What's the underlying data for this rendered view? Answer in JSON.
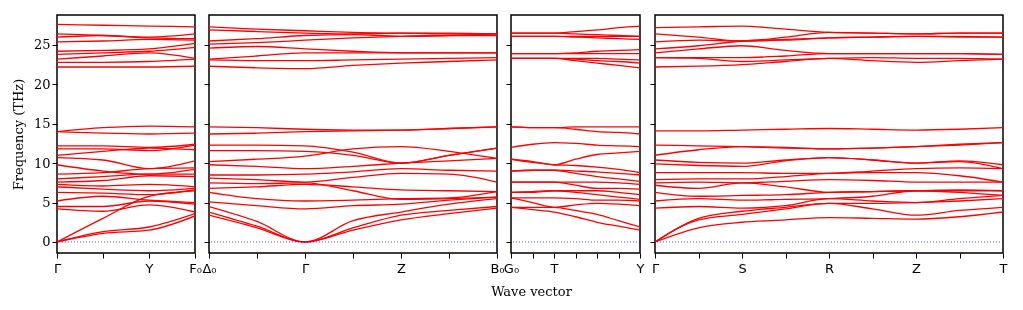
{
  "chart_data": [
    {
      "type": "line",
      "ylabel": "Frequency (THz)",
      "color": "#ff0000",
      "grid": false,
      "ylim": [
        -1.4,
        28.8
      ],
      "yticks": [
        0,
        5,
        10,
        15,
        20,
        25
      ],
      "categories": [
        "Γ",
        null,
        "Y",
        "F₀"
      ],
      "ref_lines": [
        {
          "axis": "y",
          "value": 0,
          "label": null,
          "color": "#0000ff",
          "line_style": "dotted"
        }
      ],
      "series": [
        {
          "values": [
            0,
            1.1,
            1.5,
            3.3
          ]
        },
        {
          "values": [
            0,
            1.3,
            1.9,
            3.6
          ]
        },
        {
          "values": [
            0,
            3.0,
            5.8,
            6.5
          ]
        },
        {
          "values": [
            4.2,
            3.9,
            4.7,
            3.8
          ]
        },
        {
          "values": [
            4.5,
            4.5,
            5.2,
            4.8
          ]
        },
        {
          "values": [
            5.2,
            5.8,
            5.3,
            5.0
          ]
        },
        {
          "values": [
            6.3,
            6.2,
            6.0,
            6.6
          ]
        },
        {
          "values": [
            7.0,
            6.7,
            6.5,
            6.8
          ]
        },
        {
          "values": [
            7.3,
            7.1,
            7.3,
            7.0
          ]
        },
        {
          "values": [
            7.6,
            7.8,
            8.4,
            8.3
          ]
        },
        {
          "values": [
            8.0,
            8.3,
            8.6,
            8.6
          ]
        },
        {
          "values": [
            8.6,
            8.8,
            9.3,
            9.4
          ]
        },
        {
          "values": [
            9.8,
            9.0,
            8.6,
            9.2
          ]
        },
        {
          "values": [
            10.7,
            10.4,
            9.3,
            10.3
          ]
        },
        {
          "values": [
            11.0,
            11.5,
            11.9,
            11.7
          ]
        },
        {
          "values": [
            11.8,
            11.8,
            11.6,
            12.3
          ]
        },
        {
          "values": [
            12.2,
            12.2,
            12.0,
            12.4
          ]
        },
        {
          "values": [
            14.0,
            13.8,
            13.7,
            13.8
          ]
        },
        {
          "values": [
            14.0,
            14.5,
            14.7,
            14.6
          ]
        },
        {
          "values": [
            22.2,
            22.2,
            22.2,
            22.3
          ]
        },
        {
          "values": [
            22.8,
            22.8,
            22.9,
            23.2
          ]
        },
        {
          "values": [
            23.2,
            23.6,
            24.0,
            23.3
          ]
        },
        {
          "values": [
            23.8,
            24.0,
            24.2,
            24.7
          ]
        },
        {
          "values": [
            24.2,
            24.3,
            24.5,
            25.2
          ]
        },
        {
          "values": [
            25.4,
            25.5,
            25.7,
            25.6
          ]
        },
        {
          "values": [
            26.0,
            26.2,
            25.9,
            25.8
          ]
        },
        {
          "values": [
            26.4,
            26.2,
            26.0,
            26.4
          ]
        },
        {
          "values": [
            27.6,
            27.5,
            27.4,
            27.3
          ]
        }
      ]
    },
    {
      "type": "line",
      "color": "#ff0000",
      "grid": false,
      "tick_labels": "x",
      "ylim": [
        -1.4,
        28.8
      ],
      "yticks": [
        0,
        5,
        10,
        15,
        20,
        25
      ],
      "categories": [
        "Δ₀",
        null,
        "Γ",
        null,
        "Z",
        null,
        "B₀"
      ],
      "ref_lines": [
        {
          "axis": "y",
          "value": 0,
          "label": null,
          "color": "#0000ff",
          "line_style": "dotted"
        }
      ],
      "series": [
        {
          "values": [
            3.4,
            1.8,
            0,
            1.5,
            2.8,
            3.6,
            4.3
          ]
        },
        {
          "values": [
            3.8,
            2.0,
            0,
            1.8,
            3.4,
            4.0,
            4.5
          ]
        },
        {
          "values": [
            4.5,
            2.6,
            0,
            2.7,
            3.8,
            4.8,
            5.5
          ]
        },
        {
          "values": [
            5.1,
            4.6,
            4.2,
            4.6,
            4.8,
            5.3,
            5.7
          ]
        },
        {
          "values": [
            6.3,
            5.5,
            5.2,
            5.3,
            5.5,
            5.6,
            6.4
          ]
        },
        {
          "values": [
            6.8,
            7.0,
            7.3,
            7.0,
            6.6,
            6.5,
            6.4
          ]
        },
        {
          "values": [
            7.5,
            7.4,
            7.5,
            6.5,
            5.4,
            5.5,
            5.7
          ]
        },
        {
          "values": [
            8.1,
            7.9,
            7.6,
            8.2,
            8.7,
            8.6,
            7.6
          ]
        },
        {
          "values": [
            8.5,
            8.5,
            8.6,
            8.9,
            9.3,
            9.1,
            9.0
          ]
        },
        {
          "values": [
            9.8,
            9.6,
            9.3,
            9.6,
            10.0,
            10.3,
            10.6
          ]
        },
        {
          "values": [
            10.2,
            10.5,
            10.9,
            11.8,
            12.1,
            11.5,
            10.6
          ]
        },
        {
          "values": [
            11.6,
            11.6,
            11.5,
            11.0,
            10.0,
            11.0,
            11.9
          ]
        },
        {
          "values": [
            12.3,
            12.3,
            12.2,
            11.4,
            10.0,
            11.0,
            11.9
          ]
        },
        {
          "values": [
            13.7,
            13.8,
            14.0,
            14.1,
            14.2,
            14.4,
            14.6
          ]
        },
        {
          "values": [
            14.6,
            14.5,
            14.3,
            14.2,
            14.2,
            14.4,
            14.6
          ]
        },
        {
          "values": [
            22.3,
            22.1,
            22.0,
            22.4,
            22.7,
            22.9,
            23.1
          ]
        },
        {
          "values": [
            23.1,
            23.0,
            23.0,
            23.1,
            23.2,
            23.3,
            23.4
          ]
        },
        {
          "values": [
            23.2,
            23.6,
            24.0,
            24.0,
            24.0,
            24.0,
            24.0
          ]
        },
        {
          "values": [
            24.6,
            24.8,
            24.5,
            24.2,
            24.0,
            24.0,
            24.0
          ]
        },
        {
          "values": [
            25.1,
            25.3,
            25.6,
            25.9,
            26.1,
            26.2,
            26.2
          ]
        },
        {
          "values": [
            25.5,
            25.8,
            26.2,
            26.3,
            26.1,
            26.2,
            26.4
          ]
        },
        {
          "values": [
            26.9,
            26.7,
            26.5,
            26.4,
            26.5,
            26.4,
            26.4
          ]
        },
        {
          "values": [
            27.3,
            27.0,
            26.8,
            26.6,
            26.5,
            26.5,
            26.4
          ]
        }
      ]
    },
    {
      "type": "line",
      "xlabel": "Wave vector",
      "color": "#ff0000",
      "grid": false,
      "tick_labels": "x",
      "ylim": [
        -1.4,
        28.8
      ],
      "yticks": [
        0,
        5,
        10,
        15,
        20,
        25
      ],
      "categories": [
        "G₀",
        null,
        "T",
        null,
        null,
        null,
        "Y"
      ],
      "ref_lines": [
        {
          "axis": "y",
          "value": 0,
          "label": null,
          "color": "#0000ff",
          "line_style": "dotted"
        }
      ],
      "series": [
        {
          "values": [
            4.4,
            4.1,
            3.8,
            3.2,
            2.5,
            2.0,
            1.5
          ]
        },
        {
          "values": [
            4.4,
            4.4,
            4.4,
            4.0,
            3.5,
            2.7,
            1.9
          ]
        },
        {
          "values": [
            5.6,
            5.0,
            4.4,
            4.7,
            4.9,
            4.8,
            4.6
          ]
        },
        {
          "values": [
            5.6,
            5.6,
            5.6,
            5.5,
            5.3,
            5.3,
            5.2
          ]
        },
        {
          "values": [
            6.3,
            6.4,
            6.5,
            6.3,
            6.0,
            5.7,
            5.4
          ]
        },
        {
          "values": [
            6.3,
            6.3,
            6.5,
            6.5,
            6.5,
            6.3,
            6.0
          ]
        },
        {
          "values": [
            7.6,
            7.6,
            7.6,
            7.2,
            6.8,
            6.8,
            6.7
          ]
        },
        {
          "values": [
            7.6,
            7.6,
            7.6,
            7.6,
            7.6,
            7.5,
            7.3
          ]
        },
        {
          "values": [
            9.0,
            9.1,
            9.1,
            8.7,
            8.3,
            8.0,
            7.7
          ]
        },
        {
          "values": [
            9.0,
            9.1,
            9.1,
            9.0,
            8.9,
            8.7,
            8.5
          ]
        },
        {
          "values": [
            10.5,
            10.1,
            9.8,
            9.7,
            9.5,
            9.2,
            8.8
          ]
        },
        {
          "values": [
            10.5,
            10.2,
            9.8,
            10.5,
            11.1,
            11.3,
            11.5
          ]
        },
        {
          "values": [
            12.0,
            12.4,
            12.6,
            12.5,
            12.3,
            12.2,
            12.1
          ]
        },
        {
          "values": [
            14.6,
            14.5,
            14.5,
            14.3,
            14.0,
            13.9,
            13.7
          ]
        },
        {
          "values": [
            14.6,
            14.5,
            14.5,
            14.6,
            14.6,
            14.6,
            14.6
          ]
        },
        {
          "values": [
            23.3,
            23.3,
            23.3,
            23.0,
            22.7,
            22.4,
            22.1
          ]
        },
        {
          "values": [
            23.3,
            23.3,
            23.3,
            23.2,
            23.0,
            22.9,
            22.7
          ]
        },
        {
          "values": [
            23.3,
            23.3,
            23.3,
            23.3,
            23.3,
            23.2,
            23.1
          ]
        },
        {
          "values": [
            23.9,
            23.9,
            23.9,
            23.9,
            23.9,
            23.9,
            23.9
          ]
        },
        {
          "values": [
            23.9,
            23.9,
            23.9,
            24.0,
            24.2,
            24.3,
            24.4
          ]
        },
        {
          "values": [
            26.1,
            26.1,
            26.1,
            26.0,
            25.9,
            25.8,
            25.7
          ]
        },
        {
          "values": [
            26.1,
            26.1,
            26.1,
            26.1,
            26.1,
            26.1,
            26.1
          ]
        },
        {
          "values": [
            26.5,
            26.5,
            26.5,
            26.7,
            26.9,
            27.2,
            27.4
          ]
        },
        {
          "values": [
            26.5,
            26.5,
            26.5,
            26.4,
            26.3,
            26.2,
            26.1
          ]
        }
      ]
    },
    {
      "type": "line",
      "color": "#ff0000",
      "grid": false,
      "tick_labels": "x",
      "ylim": [
        -1.4,
        28.8
      ],
      "yticks": [
        0,
        5,
        10,
        15,
        20,
        25
      ],
      "categories": [
        "Γ",
        null,
        "S",
        null,
        "R",
        null,
        "Z",
        null,
        "T"
      ],
      "ref_lines": [
        {
          "axis": "y",
          "value": 0,
          "label": null,
          "color": "#0000ff",
          "line_style": "dotted"
        }
      ],
      "series": [
        {
          "values": [
            0,
            1.8,
            2.5,
            2.8,
            3.1,
            3.0,
            2.9,
            3.2,
            3.8
          ]
        },
        {
          "values": [
            0,
            2.8,
            3.5,
            4.2,
            4.9,
            4.2,
            3.4,
            4.0,
            4.4
          ]
        },
        {
          "values": [
            0,
            3.0,
            3.9,
            4.4,
            4.9,
            4.9,
            5.0,
            5.2,
            5.5
          ]
        },
        {
          "values": [
            4.3,
            4.5,
            4.3,
            4.6,
            5.5,
            5.2,
            5.0,
            5.5,
            5.9
          ]
        },
        {
          "values": [
            5.2,
            5.5,
            5.3,
            5.4,
            5.5,
            5.8,
            6.5,
            6.3,
            5.9
          ]
        },
        {
          "values": [
            6.3,
            5.8,
            5.9,
            6.0,
            6.3,
            6.4,
            6.5,
            6.5,
            6.5
          ]
        },
        {
          "values": [
            7.2,
            6.8,
            7.5,
            7.0,
            6.3,
            6.4,
            6.5,
            6.6,
            6.5
          ]
        },
        {
          "values": [
            7.5,
            7.6,
            7.5,
            7.7,
            7.9,
            7.8,
            7.6,
            7.6,
            7.6
          ]
        },
        {
          "values": [
            7.9,
            8.0,
            8.0,
            8.3,
            8.7,
            8.8,
            8.8,
            8.4,
            7.6
          ]
        },
        {
          "values": [
            8.8,
            8.8,
            8.8,
            8.7,
            8.7,
            9.0,
            9.3,
            9.4,
            9.3
          ]
        },
        {
          "values": [
            9.9,
            9.7,
            9.6,
            10.3,
            10.7,
            10.4,
            10.0,
            10.3,
            9.8
          ]
        },
        {
          "values": [
            10.4,
            10.1,
            10.0,
            10.4,
            10.7,
            10.4,
            10.0,
            10.2,
            9.3
          ]
        },
        {
          "values": [
            11.0,
            11.7,
            12.1,
            12.0,
            11.8,
            11.9,
            12.1,
            12.3,
            12.6
          ]
        },
        {
          "values": [
            12.3,
            12.2,
            12.1,
            11.9,
            11.8,
            11.9,
            12.1,
            12.4,
            12.6
          ]
        },
        {
          "values": [
            14.1,
            14.1,
            14.2,
            14.3,
            14.4,
            14.3,
            14.2,
            14.3,
            14.5
          ]
        },
        {
          "values": [
            22.2,
            22.3,
            22.5,
            22.9,
            23.3,
            23.0,
            22.8,
            23.0,
            23.2
          ]
        },
        {
          "values": [
            23.4,
            23.3,
            22.9,
            23.1,
            23.3,
            23.4,
            23.3,
            23.3,
            23.2
          ]
        },
        {
          "values": [
            23.4,
            23.4,
            23.4,
            23.6,
            23.9,
            23.9,
            23.9,
            23.9,
            23.8
          ]
        },
        {
          "values": [
            24.0,
            24.5,
            24.9,
            24.3,
            23.9,
            23.9,
            23.9,
            23.9,
            23.8
          ]
        },
        {
          "values": [
            24.5,
            24.9,
            25.5,
            25.7,
            25.9,
            26.0,
            26.1,
            26.0,
            26.0
          ]
        },
        {
          "values": [
            25.4,
            25.6,
            25.5,
            25.6,
            25.9,
            26.0,
            26.1,
            26.1,
            26.0
          ]
        },
        {
          "values": [
            26.4,
            26.0,
            25.5,
            26.0,
            26.6,
            26.5,
            26.4,
            26.5,
            26.5
          ]
        },
        {
          "values": [
            27.2,
            27.3,
            27.4,
            27.0,
            26.6,
            26.5,
            26.4,
            26.5,
            26.5
          ]
        }
      ]
    }
  ]
}
